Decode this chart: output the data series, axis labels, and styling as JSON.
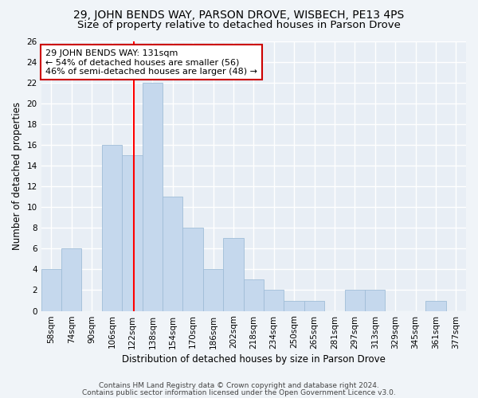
{
  "title": "29, JOHN BENDS WAY, PARSON DROVE, WISBECH, PE13 4PS",
  "subtitle": "Size of property relative to detached houses in Parson Drove",
  "xlabel": "Distribution of detached houses by size in Parson Drove",
  "ylabel": "Number of detached properties",
  "bar_color": "#c5d8ed",
  "bar_edge_color": "#a0bdd8",
  "background_color": "#e8eef5",
  "fig_background_color": "#f0f4f8",
  "grid_color": "#ffffff",
  "categories": [
    "58sqm",
    "74sqm",
    "90sqm",
    "106sqm",
    "122sqm",
    "138sqm",
    "154sqm",
    "170sqm",
    "186sqm",
    "202sqm",
    "218sqm",
    "234sqm",
    "250sqm",
    "265sqm",
    "281sqm",
    "297sqm",
    "313sqm",
    "329sqm",
    "345sqm",
    "361sqm",
    "377sqm"
  ],
  "values": [
    4,
    6,
    0,
    16,
    15,
    22,
    11,
    8,
    4,
    7,
    3,
    2,
    1,
    1,
    0,
    2,
    2,
    0,
    0,
    1,
    0
  ],
  "red_line_index": 4.5625,
  "ylim": [
    0,
    26
  ],
  "yticks": [
    0,
    2,
    4,
    6,
    8,
    10,
    12,
    14,
    16,
    18,
    20,
    22,
    24,
    26
  ],
  "annotation_text": "29 JOHN BENDS WAY: 131sqm\n← 54% of detached houses are smaller (56)\n46% of semi-detached houses are larger (48) →",
  "annotation_box_color": "#ffffff",
  "annotation_border_color": "#cc0000",
  "footnote_line1": "Contains HM Land Registry data © Crown copyright and database right 2024.",
  "footnote_line2": "Contains public sector information licensed under the Open Government Licence v3.0.",
  "title_fontsize": 10,
  "subtitle_fontsize": 9.5,
  "label_fontsize": 8.5,
  "tick_fontsize": 7.5,
  "annotation_fontsize": 8,
  "footnote_fontsize": 6.5
}
